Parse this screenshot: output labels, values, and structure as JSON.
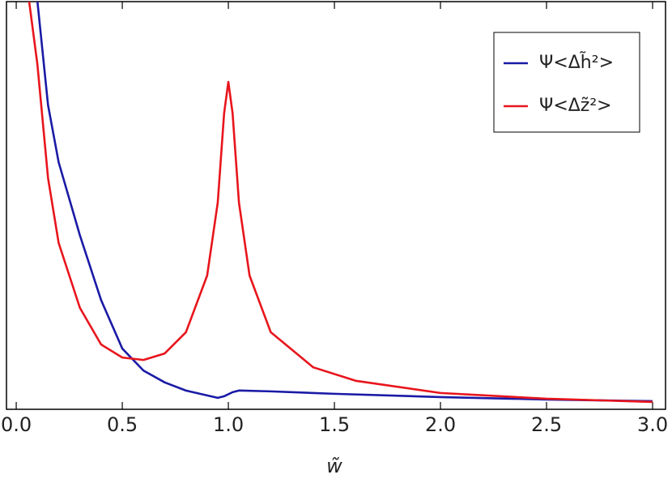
{
  "chart_data": {
    "type": "line",
    "x_label": "w̃",
    "xlim": [
      -0.046,
      3.061
    ],
    "ylim": [
      0,
      100
    ],
    "xticks": [
      {
        "value": 0,
        "label": "0.0"
      },
      0.5,
      {
        "value": 1,
        "label": "1.0"
      },
      1.5,
      {
        "value": 2,
        "label": "2.0"
      },
      2.5,
      {
        "value": 3,
        "label": "3.0"
      }
    ],
    "legend": "upper right",
    "series": [
      {
        "name": "Ψ<Δh̃²>",
        "color": "#1a1aa6",
        "x": [
          0.1,
          0.15,
          0.2,
          0.3,
          0.4,
          0.5,
          0.6,
          0.7,
          0.8,
          0.9,
          0.95,
          0.98,
          1.02,
          1.05,
          1.2,
          1.5,
          2.0,
          2.5,
          3.0
        ],
        "values": [
          100,
          74.6,
          60.6,
          42.7,
          26.8,
          14.9,
          9.5,
          6.6,
          4.6,
          3.4,
          2.8,
          3.2,
          4.2,
          4.6,
          4.4,
          3.8,
          3.0,
          2.4,
          2.0
        ]
      },
      {
        "name": "Ψ<Δz̃²>",
        "color": "#e8151c",
        "x": [
          0.061,
          0.1,
          0.15,
          0.2,
          0.3,
          0.4,
          0.5,
          0.6,
          0.7,
          0.8,
          0.9,
          0.95,
          0.98,
          1.0,
          1.02,
          1.05,
          1.1,
          1.2,
          1.4,
          1.6,
          2.0,
          2.5,
          3.0
        ],
        "values": [
          100,
          84.5,
          56.7,
          40.8,
          24.9,
          15.9,
          12.7,
          12.1,
          13.7,
          18.9,
          32.8,
          50.7,
          72.6,
          80.3,
          72.6,
          50.7,
          32.8,
          18.9,
          10.3,
          7.0,
          4.0,
          2.6,
          1.8
        ]
      }
    ]
  }
}
